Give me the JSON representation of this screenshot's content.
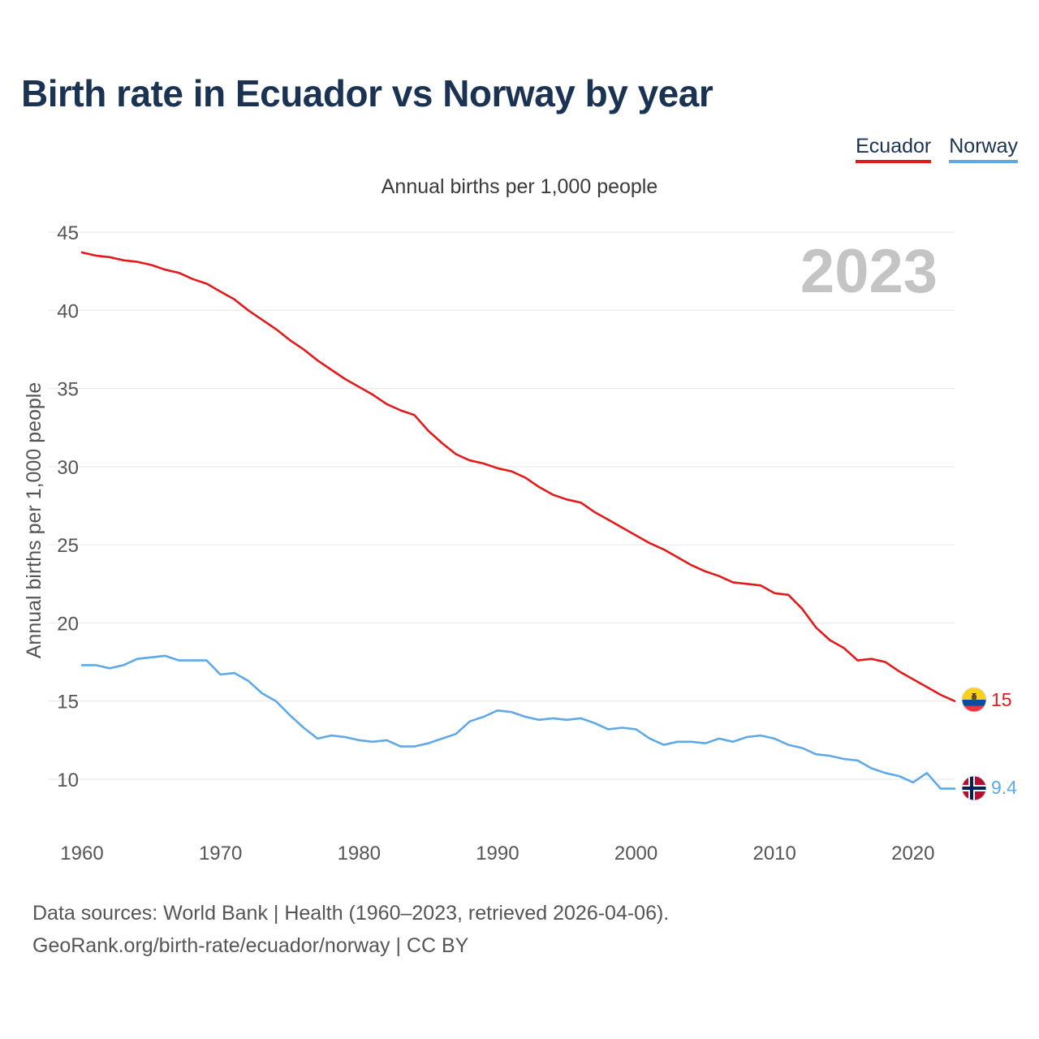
{
  "header": {
    "title": "Birth rate in Ecuador vs Norway by year",
    "subtitle": "Annual births per 1,000 people"
  },
  "legend": [
    {
      "label": "Ecuador",
      "color": "#e31a1c"
    },
    {
      "label": "Norway",
      "color": "#5ea9e6"
    }
  ],
  "footer": {
    "line1": "Data sources: World Bank | Health (1960–2023, retrieved 2026-04-06).",
    "line2": "GeoRank.org/birth-rate/ecuador/norway | CC BY"
  },
  "chart_data": {
    "type": "line",
    "title": "Birth rate in Ecuador vs Norway by year",
    "subtitle": "Annual births per 1,000 people",
    "year_label": "2023",
    "xlabel": "",
    "ylabel": "Annual births per 1,000 people",
    "xlim": [
      1960,
      2023
    ],
    "ylim": [
      7,
      46
    ],
    "xticks": [
      1960,
      1970,
      1980,
      1990,
      2000,
      2010,
      2020
    ],
    "yticks": [
      10,
      15,
      20,
      25,
      30,
      35,
      40,
      45
    ],
    "grid": true,
    "legend_position": "top-right",
    "x": [
      1960,
      1961,
      1962,
      1963,
      1964,
      1965,
      1966,
      1967,
      1968,
      1969,
      1970,
      1971,
      1972,
      1973,
      1974,
      1975,
      1976,
      1977,
      1978,
      1979,
      1980,
      1981,
      1982,
      1983,
      1984,
      1985,
      1986,
      1987,
      1988,
      1989,
      1990,
      1991,
      1992,
      1993,
      1994,
      1995,
      1996,
      1997,
      1998,
      1999,
      2000,
      2001,
      2002,
      2003,
      2004,
      2005,
      2006,
      2007,
      2008,
      2009,
      2010,
      2011,
      2012,
      2013,
      2014,
      2015,
      2016,
      2017,
      2018,
      2019,
      2020,
      2021,
      2022,
      2023
    ],
    "series": [
      {
        "name": "Ecuador",
        "color": "#e31a1c",
        "end_label": "15",
        "values": [
          43.7,
          43.5,
          43.4,
          43.2,
          43.1,
          42.9,
          42.6,
          42.4,
          42.0,
          41.7,
          41.2,
          40.7,
          40.0,
          39.4,
          38.8,
          38.1,
          37.5,
          36.8,
          36.2,
          35.6,
          35.1,
          34.6,
          34.0,
          33.6,
          33.3,
          32.3,
          31.5,
          30.8,
          30.4,
          30.2,
          29.9,
          29.7,
          29.3,
          28.7,
          28.2,
          27.9,
          27.7,
          27.1,
          26.6,
          26.1,
          25.6,
          25.1,
          24.7,
          24.2,
          23.7,
          23.3,
          23.0,
          22.6,
          22.5,
          22.4,
          21.9,
          21.8,
          20.9,
          19.7,
          18.9,
          18.4,
          17.6,
          17.7,
          17.5,
          16.9,
          16.4,
          15.9,
          15.4,
          15.0
        ]
      },
      {
        "name": "Norway",
        "color": "#5ea9e6",
        "end_label": "9.4",
        "values": [
          17.3,
          17.3,
          17.1,
          17.3,
          17.7,
          17.8,
          17.9,
          17.6,
          17.6,
          17.6,
          16.7,
          16.8,
          16.3,
          15.5,
          15.0,
          14.1,
          13.3,
          12.6,
          12.8,
          12.7,
          12.5,
          12.4,
          12.5,
          12.1,
          12.1,
          12.3,
          12.6,
          12.9,
          13.7,
          14.0,
          14.4,
          14.3,
          14.0,
          13.8,
          13.9,
          13.8,
          13.9,
          13.6,
          13.2,
          13.3,
          13.2,
          12.6,
          12.2,
          12.4,
          12.4,
          12.3,
          12.6,
          12.4,
          12.7,
          12.8,
          12.6,
          12.2,
          12.0,
          11.6,
          11.5,
          11.3,
          11.2,
          10.7,
          10.4,
          10.2,
          9.8,
          10.4,
          9.4,
          9.4
        ]
      }
    ]
  }
}
